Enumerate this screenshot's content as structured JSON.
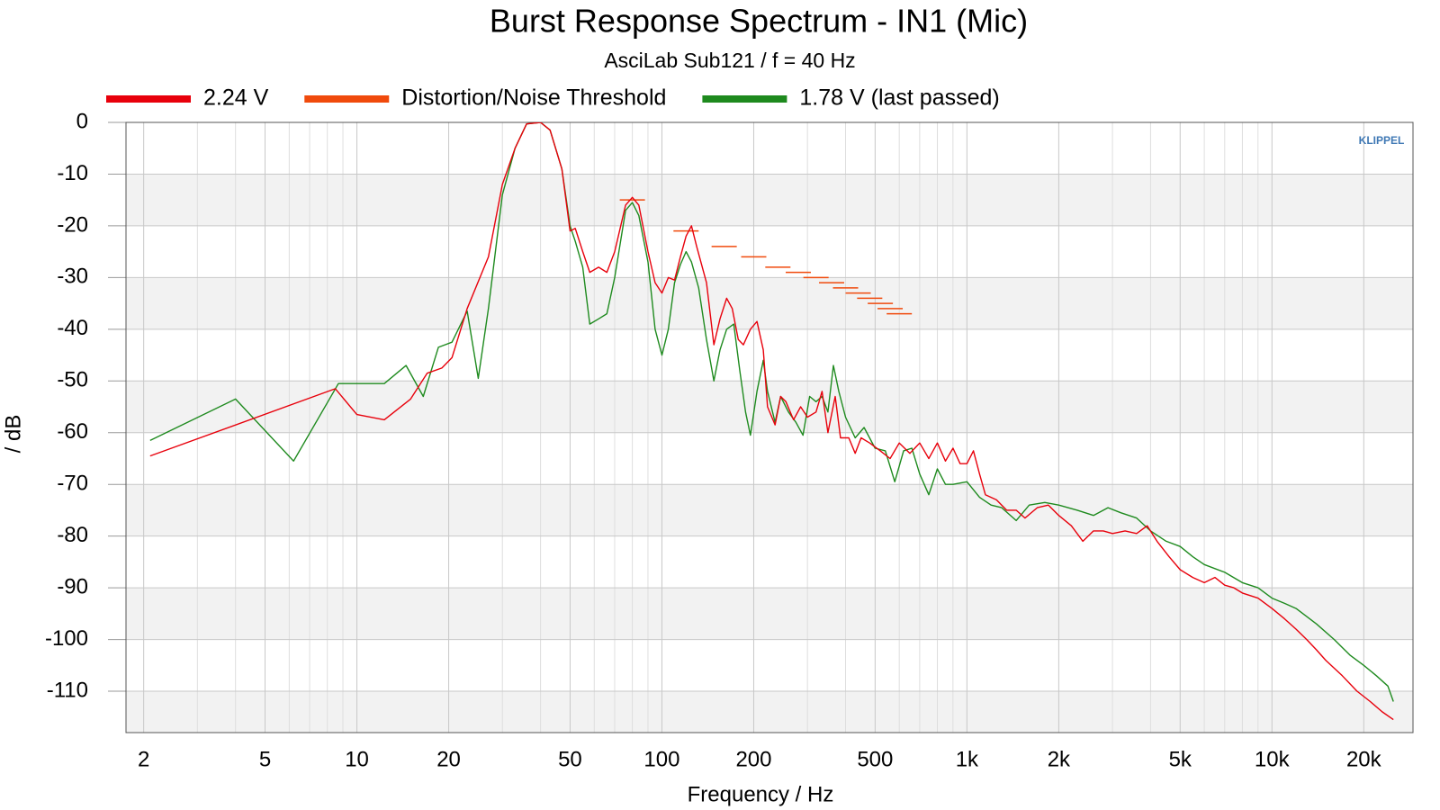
{
  "chart_data": {
    "type": "line",
    "title": "Burst Response Spectrum - IN1 (Mic)",
    "subtitle": "AsciLab Sub121 / f = 40 Hz",
    "xlabel": "Frequency / Hz",
    "ylabel": "/ dB",
    "watermark": "KLIPPEL",
    "xscale": "log",
    "xlim": [
      1.75,
      29000
    ],
    "ylim": [
      -118,
      0
    ],
    "xticks": [
      2,
      5,
      10,
      20,
      50,
      100,
      200,
      500,
      {
        "value": 1000,
        "label": "1k"
      },
      {
        "value": 2000,
        "label": "2k"
      },
      {
        "value": 5000,
        "label": "5k"
      },
      {
        "value": 10000,
        "label": "10k"
      },
      {
        "value": 20000,
        "label": "20k"
      }
    ],
    "x_minor_ticks": [
      3,
      4,
      6,
      7,
      8,
      9,
      30,
      40,
      60,
      70,
      80,
      90,
      300,
      400,
      600,
      700,
      800,
      900,
      3000,
      4000,
      6000,
      7000,
      8000,
      9000
    ],
    "yticks": [
      0,
      -10,
      -20,
      -30,
      -40,
      -50,
      -60,
      -70,
      -80,
      -90,
      -100,
      -110
    ],
    "grid": true,
    "legend": "top",
    "series": [
      {
        "name": "2.24 V",
        "color": "#e8000b",
        "x": [
          2.1,
          8.5,
          10,
          12.3,
          15,
          17,
          19,
          20.5,
          23,
          27,
          30,
          33,
          36,
          40,
          43,
          47,
          50,
          52,
          55,
          58,
          62,
          66,
          70,
          76,
          80,
          84,
          90,
          95,
          100,
          105,
          110,
          115,
          120,
          125,
          130,
          140,
          148,
          155,
          163,
          170,
          178,
          185,
          195,
          205,
          215,
          222,
          235,
          245,
          255,
          270,
          285,
          300,
          320,
          335,
          350,
          370,
          385,
          410,
          430,
          450,
          480,
          520,
          560,
          600,
          650,
          700,
          750,
          800,
          850,
          900,
          950,
          1000,
          1050,
          1100,
          1150,
          1250,
          1350,
          1450,
          1550,
          1700,
          1850,
          2000,
          2200,
          2400,
          2600,
          2800,
          3000,
          3300,
          3600,
          3900,
          4200,
          4600,
          5000,
          5500,
          6000,
          6500,
          7000,
          7500,
          8000,
          9000,
          10000,
          11000,
          12000,
          13000,
          14000,
          15000,
          17000,
          19000,
          21000,
          23000,
          25000
        ],
        "values": [
          -64.5,
          -51.5,
          -56.5,
          -57.5,
          -53.5,
          -48.5,
          -47.5,
          -45.5,
          -36,
          -26,
          -12,
          -5,
          -0.3,
          0,
          -1.5,
          -9,
          -21,
          -20.5,
          -25,
          -29,
          -28,
          -29,
          -25,
          -16,
          -14.5,
          -16,
          -25,
          -31,
          -33,
          -30,
          -30.5,
          -26,
          -22,
          -20,
          -24,
          -31,
          -43,
          -38,
          -34,
          -36,
          -42,
          -43,
          -40,
          -38.5,
          -44,
          -55,
          -58.5,
          -53,
          -54,
          -57.5,
          -55,
          -57,
          -56,
          -52,
          -60,
          -53,
          -61,
          -61,
          -64,
          -61,
          -62,
          -63.5,
          -65,
          -62,
          -64,
          -62,
          -65,
          -62,
          -65.5,
          -63,
          -66,
          -66,
          -63.5,
          -68,
          -72,
          -73,
          -75,
          -75,
          -76.5,
          -74.5,
          -74,
          -76,
          -78,
          -81,
          -79,
          -79,
          -79.5,
          -79,
          -79.5,
          -78,
          -81,
          -84,
          -86.5,
          -88,
          -89,
          -88,
          -89.5,
          -90,
          -91,
          -92,
          -94,
          -96,
          -98,
          -100,
          -102,
          -104,
          -107,
          -110,
          -112,
          -114,
          -115.5
        ]
      },
      {
        "name": "Distortion/Noise Threshold",
        "color": "#f04a0c",
        "marker": "dash",
        "x": [
          80,
          120,
          160,
          200,
          240,
          280,
          320,
          360,
          400,
          440,
          480,
          520,
          560,
          600
        ],
        "values": [
          -15,
          -21,
          -24,
          -26,
          -28,
          -29,
          -30,
          -31,
          -32,
          -33,
          -34,
          -35,
          -36,
          -37
        ]
      },
      {
        "name": "1.78 V (last passed)",
        "color": "#1e8a1e",
        "x": [
          2.1,
          4,
          6.2,
          8.7,
          12.3,
          14.5,
          16.5,
          18.5,
          20.5,
          23,
          25,
          27,
          30,
          33,
          36,
          40,
          43,
          47,
          50,
          52,
          55,
          58,
          62,
          66,
          70,
          76,
          80,
          84,
          90,
          95,
          100,
          105,
          110,
          115,
          120,
          125,
          132,
          140,
          148,
          155,
          163,
          172,
          180,
          188,
          195,
          205,
          215,
          222,
          235,
          245,
          260,
          275,
          290,
          305,
          320,
          335,
          350,
          365,
          380,
          400,
          430,
          460,
          500,
          540,
          580,
          620,
          660,
          700,
          750,
          800,
          850,
          900,
          1000,
          1100,
          1200,
          1300,
          1450,
          1600,
          1800,
          2000,
          2300,
          2600,
          2900,
          3200,
          3600,
          4000,
          4500,
          5000,
          5500,
          6000,
          7000,
          8000,
          9000,
          10000,
          11000,
          12000,
          14000,
          16000,
          18000,
          20000,
          22000,
          24000,
          25000
        ],
        "values": [
          -61.5,
          -53.5,
          -65.5,
          -50.5,
          -50.5,
          -47,
          -53,
          -43.5,
          -42.5,
          -36.5,
          -49.5,
          -36,
          -14,
          -5,
          -0.3,
          0,
          -1.5,
          -9,
          -20,
          -23,
          -28,
          -39,
          -38,
          -37,
          -30,
          -17,
          -15.5,
          -18,
          -27,
          -40,
          -45,
          -40,
          -31,
          -27.5,
          -25,
          -27,
          -32,
          -42,
          -50,
          -44,
          -40,
          -39,
          -48,
          -56,
          -60.5,
          -52,
          -46,
          -52,
          -58,
          -53,
          -56,
          -58,
          -60.5,
          -53,
          -54,
          -53,
          -56,
          -47,
          -52,
          -57,
          -61,
          -59,
          -63,
          -63.5,
          -69.5,
          -63.5,
          -63,
          -68,
          -72,
          -67,
          -70,
          -70,
          -69.5,
          -72.5,
          -74,
          -74.5,
          -77,
          -74,
          -73.5,
          -74,
          -75,
          -76,
          -74.5,
          -75.5,
          -76.5,
          -79,
          -81,
          -82,
          -84,
          -85.5,
          -87,
          -89,
          -90,
          -92,
          -93,
          -94,
          -97,
          -100,
          -103,
          -105,
          -107,
          -109,
          -112
        ]
      }
    ]
  }
}
